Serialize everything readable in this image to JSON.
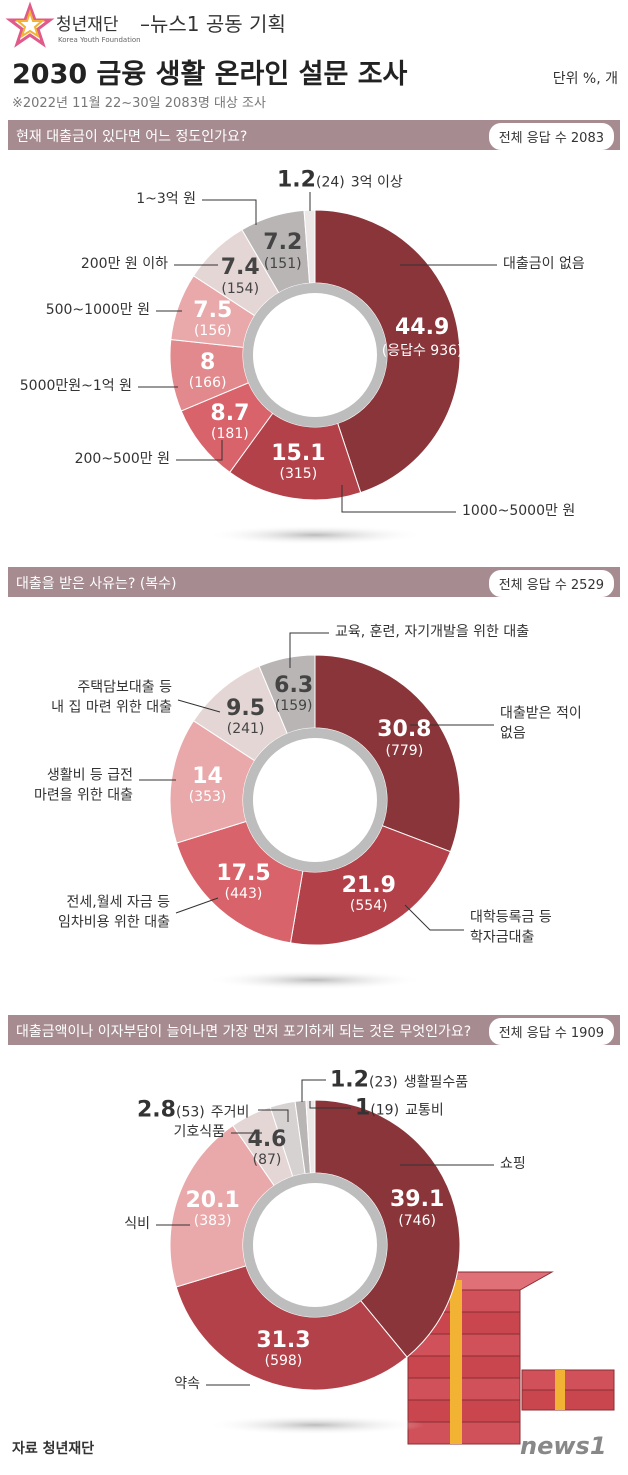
{
  "header": {
    "org": "청년재단",
    "org_en": "Korea Youth Foundation",
    "partner": "–뉴스1 공동 기획",
    "title": "2030 금융 생활 온라인 설문 조사",
    "unit": "단위 %, 개",
    "note": "※2022년 11월 22~30일 2083명 대상 조사"
  },
  "chart_data": [
    {
      "type": "donut",
      "title": "현재 대출금이 있다면 어느 정도인가요?",
      "total": "전체 응답 수 2083",
      "categories": [
        "대출금이 없음",
        "1000~5000만 원",
        "200~500만 원",
        "5000만원~1억 원",
        "500~1000만 원",
        "200만 원 이하",
        "1~3억 원",
        "3억 이상"
      ],
      "values": [
        44.9,
        15.1,
        8.7,
        8,
        7.5,
        7.4,
        7.2,
        1.2
      ],
      "count_labels": [
        "(응답수 936)",
        "(315)",
        "(181)",
        "(166)",
        "(156)",
        "(154)",
        "(151)",
        "(24)"
      ],
      "colors": [
        "#8a3539",
        "#b3414a",
        "#d8636a",
        "#e1898c",
        "#e9a8aa",
        "#e5d6d6",
        "#b9b5b5",
        "#ece8e8"
      ]
    },
    {
      "type": "donut",
      "title": "대출을 받은 사유는? (복수)",
      "total": "전체 응답 수 2529",
      "categories": [
        "대출받은 적이\n없음",
        "대학등록금 등\n학자금대출",
        "전세,월세 자금 등\n임차비용 위한 대출",
        "생활비 등 급전\n마련을 위한 대출",
        "주택담보대출 등\n내 집 마련 위한 대출",
        "교육, 훈련, 자기개발을 위한 대출"
      ],
      "values": [
        30.8,
        21.9,
        17.5,
        14,
        9.5,
        6.3
      ],
      "count_labels": [
        "(779)",
        "(554)",
        "(443)",
        "(353)",
        "(241)",
        "(159)"
      ],
      "colors": [
        "#8a3539",
        "#b3414a",
        "#d8636a",
        "#e9a8aa",
        "#e5d6d6",
        "#b9b5b5"
      ]
    },
    {
      "type": "donut",
      "title": "대출금액이나 이자부담이 늘어나면 가장 먼저 포기하게 되는 것은 무엇인가요?",
      "total": "전체 응답 수 1909",
      "categories": [
        "쇼핑",
        "약속",
        "식비",
        "기호식품",
        "주거비",
        "생활필수품",
        "교통비"
      ],
      "values": [
        39.1,
        31.3,
        20.1,
        4.6,
        2.8,
        1.2,
        1
      ],
      "count_labels": [
        "(746)",
        "(598)",
        "(383)",
        "(87)",
        "(53)",
        "(23)",
        "(19)"
      ],
      "colors": [
        "#8a3539",
        "#b3414a",
        "#e9a8aa",
        "#e5d6d6",
        "#d6d2d2",
        "#b9b5b5",
        "#ece8e8"
      ]
    }
  ],
  "footer": {
    "source": "자료 청년재단",
    "logo": "news1"
  }
}
